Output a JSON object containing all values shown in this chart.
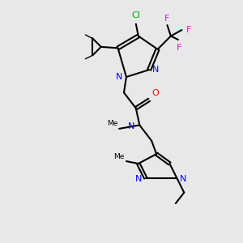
{
  "bg_color": "#e8e8e8",
  "bond_color": "#000000",
  "bond_width": 1.5,
  "atom_colors": {
    "N": "#0000ff",
    "O": "#ff0000",
    "Cl": "#00aa00",
    "F": "#ff00ff",
    "C": "#000000"
  },
  "font_size": 8,
  "fig_size": [
    3.0,
    3.0
  ],
  "dpi": 100
}
